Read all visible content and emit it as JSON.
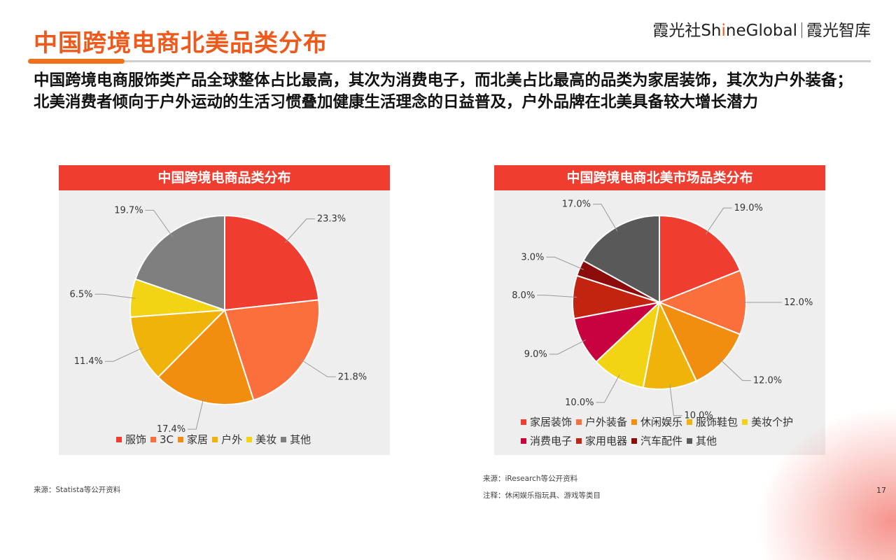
{
  "header": {
    "title": "中国跨境电商北美品类分布",
    "brand_a": "霞光社",
    "brand_b1": "Sh",
    "brand_b2": "i",
    "brand_b3": "neGlobal",
    "brand_c": "霞光智库"
  },
  "subtitle": "中国跨境电商服饰类产品全球整体占比最高，其次为消费电子，而北美占比最高的品类为家居装饰，其次为户外装备；北美消费者倾向于户外运动的生活习惯叠加健康生活理念的日益普及，户外品牌在北美具备较大增长潜力",
  "chart_data": [
    {
      "type": "pie",
      "title": "中国跨境电商品类分布",
      "categories": [
        "服饰",
        "3C",
        "家居",
        "户外",
        "美妆",
        "其他"
      ],
      "values": [
        23.3,
        21.8,
        17.4,
        11.4,
        6.5,
        19.7
      ],
      "value_labels": [
        "23.3%",
        "21.8%",
        "17.4%",
        "11.4%",
        "6.5%",
        "19.7%"
      ],
      "colors": [
        "#ef3d2f",
        "#fb6f3c",
        "#f28e0f",
        "#efb30a",
        "#f3d414",
        "#7f7f7f"
      ],
      "legend_position": "bottom"
    },
    {
      "type": "pie",
      "title": "中国跨境电商北美市场品类分布",
      "categories": [
        "家居装饰",
        "户外装备",
        "休闲娱乐",
        "服饰鞋包",
        "美妆个护",
        "消费电子",
        "家用电器",
        "汽车配件",
        "其他"
      ],
      "values": [
        19.0,
        12.0,
        12.0,
        10.0,
        10.0,
        9.0,
        8.0,
        3.0,
        17.0
      ],
      "value_labels": [
        "19.0%",
        "12.0%",
        "12.0%",
        "10.0%",
        "10.0%",
        "9.0%",
        "8.0%",
        "3.0%",
        "17.0%"
      ],
      "colors": [
        "#ef3d2f",
        "#fb6f3c",
        "#f28e0f",
        "#efb30a",
        "#f3d414",
        "#c8023f",
        "#c3240f",
        "#8b0c0a",
        "#595959"
      ],
      "legend_position": "bottom"
    }
  ],
  "footer": {
    "source_left": "来源：Statista等公开资料",
    "source_right": "来源：iResearch等公开资料",
    "note_right": "注释：休闲娱乐指玩具、游戏等类目",
    "page_number": "17"
  }
}
